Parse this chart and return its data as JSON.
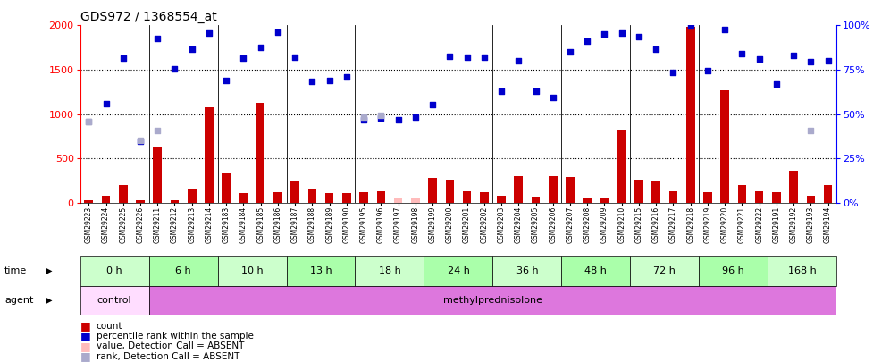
{
  "title": "GDS972 / 1368554_at",
  "samples": [
    "GSM29223",
    "GSM29224",
    "GSM29225",
    "GSM29226",
    "GSM29211",
    "GSM29212",
    "GSM29213",
    "GSM29214",
    "GSM29183",
    "GSM29184",
    "GSM29185",
    "GSM29186",
    "GSM29187",
    "GSM29188",
    "GSM29189",
    "GSM29190",
    "GSM29195",
    "GSM29196",
    "GSM29197",
    "GSM29198",
    "GSM29199",
    "GSM29200",
    "GSM29201",
    "GSM29202",
    "GSM29203",
    "GSM29204",
    "GSM29205",
    "GSM29206",
    "GSM29207",
    "GSM29208",
    "GSM29209",
    "GSM29210",
    "GSM29215",
    "GSM29216",
    "GSM29217",
    "GSM29218",
    "GSM29219",
    "GSM29220",
    "GSM29221",
    "GSM29222",
    "GSM29191",
    "GSM29192",
    "GSM29193",
    "GSM29194"
  ],
  "count_values": [
    30,
    80,
    200,
    30,
    620,
    30,
    150,
    1080,
    340,
    110,
    1130,
    120,
    240,
    150,
    110,
    110,
    120,
    130,
    50,
    60,
    280,
    260,
    130,
    120,
    80,
    300,
    70,
    300,
    290,
    50,
    50,
    810,
    260,
    250,
    130,
    1980,
    120,
    1270,
    200,
    130,
    120,
    360,
    80,
    200
  ],
  "count_is_absent": [
    false,
    false,
    false,
    false,
    false,
    false,
    false,
    false,
    false,
    false,
    false,
    false,
    false,
    false,
    false,
    false,
    false,
    false,
    true,
    true,
    false,
    false,
    false,
    false,
    false,
    false,
    false,
    false,
    false,
    false,
    false,
    false,
    false,
    false,
    false,
    false,
    false,
    false,
    false,
    false,
    false,
    false,
    false,
    false
  ],
  "percentile_values": [
    920,
    1120,
    1630,
    690,
    1850,
    1510,
    1730,
    1910,
    1380,
    1630,
    1750,
    1920,
    1640,
    1370,
    1380,
    1420,
    940,
    960,
    940,
    970,
    1110,
    1650,
    1640,
    1640,
    1260,
    1600,
    1260,
    1190,
    1700,
    1820,
    1900,
    1910,
    1870,
    1730,
    1470,
    1990,
    1490,
    1950,
    1680,
    1620,
    1340,
    1660,
    1590,
    1600
  ],
  "percentile_is_absent": [
    true,
    false,
    false,
    false,
    false,
    false,
    false,
    false,
    false,
    false,
    false,
    false,
    false,
    false,
    false,
    false,
    false,
    false,
    false,
    false,
    false,
    false,
    false,
    false,
    false,
    false,
    false,
    false,
    false,
    false,
    false,
    false,
    false,
    false,
    false,
    false,
    false,
    false,
    false,
    false,
    false,
    false,
    false,
    false
  ],
  "rank_absent_values": [
    920,
    null,
    null,
    700,
    810,
    null,
    null,
    null,
    null,
    null,
    null,
    null,
    null,
    null,
    null,
    null,
    970,
    990,
    null,
    null,
    null,
    null,
    null,
    null,
    null,
    null,
    null,
    null,
    null,
    null,
    null,
    null,
    null,
    null,
    null,
    null,
    null,
    null,
    null,
    null,
    null,
    null,
    810,
    null
  ],
  "time_groups": [
    {
      "label": "0 h",
      "start": 0,
      "end": 4
    },
    {
      "label": "6 h",
      "start": 4,
      "end": 8
    },
    {
      "label": "10 h",
      "start": 8,
      "end": 12
    },
    {
      "label": "13 h",
      "start": 12,
      "end": 16
    },
    {
      "label": "18 h",
      "start": 16,
      "end": 20
    },
    {
      "label": "24 h",
      "start": 20,
      "end": 24
    },
    {
      "label": "36 h",
      "start": 24,
      "end": 28
    },
    {
      "label": "48 h",
      "start": 28,
      "end": 32
    },
    {
      "label": "72 h",
      "start": 32,
      "end": 36
    },
    {
      "label": "96 h",
      "start": 36,
      "end": 40
    },
    {
      "label": "168 h",
      "start": 40,
      "end": 44
    }
  ],
  "time_colors_even": "#ccffcc",
  "time_colors_odd": "#aaffaa",
  "ylim_left": [
    0,
    2000
  ],
  "ylim_right": [
    0,
    100
  ],
  "yticks_left": [
    0,
    500,
    1000,
    1500,
    2000
  ],
  "yticks_right": [
    0,
    25,
    50,
    75,
    100
  ],
  "bar_color": "#cc0000",
  "bar_absent_color": "#ffbbbb",
  "pct_color": "#0000cc",
  "pct_absent_color": "#9999bb",
  "rank_absent_color": "#aaaacc",
  "control_color": "#ffddff",
  "agent_color": "#dd77dd",
  "legend_items": [
    {
      "color": "#cc0000",
      "label": "count"
    },
    {
      "color": "#0000cc",
      "label": "percentile rank within the sample"
    },
    {
      "color": "#ffbbbb",
      "label": "value, Detection Call = ABSENT"
    },
    {
      "color": "#aaaacc",
      "label": "rank, Detection Call = ABSENT"
    }
  ]
}
